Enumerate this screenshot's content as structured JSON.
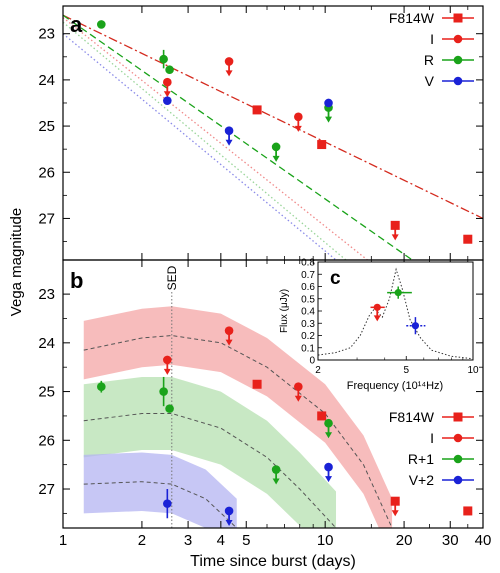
{
  "figure": {
    "ylabel": "Vega magnitude",
    "xlabel": "Time since burst (days)",
    "x_ticks": [
      {
        "value": 1,
        "label": "1"
      },
      {
        "value": 2,
        "label": "2"
      },
      {
        "value": 3,
        "label": "3"
      },
      {
        "value": 4,
        "label": "4"
      },
      {
        "value": 5,
        "label": "5"
      },
      {
        "value": 10,
        "label": "10"
      },
      {
        "value": 20,
        "label": "20"
      },
      {
        "value": 30,
        "label": "30"
      },
      {
        "value": 40,
        "label": "40"
      }
    ]
  },
  "chart_data": [
    {
      "panel_label": "a",
      "type": "scatter",
      "x_scale": "log",
      "xlim": [
        1,
        40
      ],
      "ylim": [
        27.9,
        22.4
      ],
      "y_axis": "inverted",
      "y_ticks": [
        23,
        24,
        25,
        26,
        27
      ],
      "legend": {
        "placement": "top-right",
        "entries": [
          "F814W",
          "I",
          "R",
          "V"
        ]
      },
      "series": [
        {
          "name": "F814W",
          "color": "#e8211b",
          "marker": "square",
          "points": [
            {
              "x": 5.5,
              "y": 24.65
            },
            {
              "x": 9.7,
              "y": 25.4
            },
            {
              "x": 18.5,
              "y": 27.15,
              "upper_limit": true
            },
            {
              "x": 35,
              "y": 27.45
            }
          ]
        },
        {
          "name": "I",
          "color": "#e8211b",
          "marker": "circle",
          "points": [
            {
              "x": 2.5,
              "y": 24.05,
              "upper_limit": true
            },
            {
              "x": 4.3,
              "y": 23.6,
              "upper_limit": true
            },
            {
              "x": 7.9,
              "y": 24.8,
              "upper_limit": true
            }
          ]
        },
        {
          "name": "R",
          "color": "#1aa31a",
          "marker": "circle",
          "points": [
            {
              "x": 1.4,
              "y": 22.8
            },
            {
              "x": 2.42,
              "y": 23.55,
              "yerr": 0.2
            },
            {
              "x": 2.55,
              "y": 23.78
            },
            {
              "x": 6.5,
              "y": 25.45,
              "upper_limit": true
            },
            {
              "x": 10.3,
              "y": 24.6,
              "upper_limit": true
            }
          ]
        },
        {
          "name": "V",
          "color": "#1a22d6",
          "marker": "circle",
          "points": [
            {
              "x": 2.5,
              "y": 24.45
            },
            {
              "x": 4.3,
              "y": 25.1,
              "upper_limit": true
            },
            {
              "x": 10.3,
              "y": 24.5
            }
          ]
        }
      ],
      "fits": [
        {
          "color": "#d42a1e",
          "style": "dash-dot",
          "from": [
            1,
            22.6
          ],
          "to": [
            40,
            27.0
          ]
        },
        {
          "color": "#1aa31a",
          "style": "dashed",
          "from": [
            1,
            22.6
          ],
          "to": [
            21.5,
            27.9
          ]
        },
        {
          "color": "#f08a8a",
          "style": "dotted",
          "from": [
            1,
            22.65
          ],
          "to": [
            14.5,
            27.9
          ]
        },
        {
          "color": "#9ad59a",
          "style": "dotted",
          "from": [
            1,
            22.75
          ],
          "to": [
            12,
            27.9
          ]
        },
        {
          "color": "#8a8ae8",
          "style": "dotted",
          "from": [
            1,
            23.0
          ],
          "to": [
            11,
            27.9
          ]
        }
      ]
    },
    {
      "panel_label": "b",
      "type": "scatter",
      "x_scale": "log",
      "xlim": [
        1,
        40
      ],
      "ylim": [
        27.8,
        22.3
      ],
      "y_axis": "inverted",
      "y_ticks": [
        23,
        24,
        25,
        26,
        27
      ],
      "vline": {
        "x": 2.6,
        "label": "SED"
      },
      "legend": {
        "placement": "bottom-right",
        "entries": [
          "F814W",
          "I",
          "R+1",
          "V+2"
        ]
      },
      "bands": [
        {
          "name": "I",
          "color": "#f4a6a6",
          "center": [
            [
              1.2,
              24.15
            ],
            [
              2.0,
              23.9
            ],
            [
              2.6,
              23.85
            ],
            [
              4,
              24.0
            ],
            [
              6,
              24.5
            ],
            [
              10,
              25.45
            ],
            [
              14,
              26.5
            ],
            [
              18,
              27.8
            ]
          ],
          "half_width": 0.6
        },
        {
          "name": "R+1",
          "color": "#b6e0b0",
          "center": [
            [
              1.2,
              25.6
            ],
            [
              2.0,
              25.45
            ],
            [
              2.6,
              25.45
            ],
            [
              4,
              25.75
            ],
            [
              6,
              26.35
            ],
            [
              8,
              27.0
            ],
            [
              11,
              27.8
            ]
          ],
          "half_width": 0.75
        },
        {
          "name": "V+2",
          "color": "#b4b4f2",
          "center": [
            [
              1.2,
              26.9
            ],
            [
              2.0,
              26.85
            ],
            [
              2.6,
              26.9
            ],
            [
              3.5,
              27.2
            ],
            [
              4.6,
              27.8
            ]
          ],
          "half_width": 0.6
        }
      ],
      "series": [
        {
          "name": "F814W",
          "color": "#e8211b",
          "marker": "square",
          "points": [
            {
              "x": 5.5,
              "y": 24.85
            },
            {
              "x": 9.7,
              "y": 25.5
            },
            {
              "x": 18.5,
              "y": 27.25,
              "upper_limit": true
            },
            {
              "x": 35,
              "y": 27.45
            }
          ]
        },
        {
          "name": "I",
          "color": "#e8211b",
          "marker": "circle",
          "points": [
            {
              "x": 2.5,
              "y": 24.35,
              "upper_limit": true
            },
            {
              "x": 4.3,
              "y": 23.75,
              "upper_limit": true
            },
            {
              "x": 7.9,
              "y": 24.9,
              "upper_limit": true
            }
          ]
        },
        {
          "name": "R+1",
          "color": "#1aa31a",
          "marker": "circle",
          "points": [
            {
              "x": 1.4,
              "y": 24.9,
              "yerr": 0.12
            },
            {
              "x": 2.42,
              "y": 25.0,
              "yerr": 0.3
            },
            {
              "x": 2.55,
              "y": 25.35
            },
            {
              "x": 6.5,
              "y": 26.6,
              "upper_limit": true
            },
            {
              "x": 10.3,
              "y": 25.65,
              "upper_limit": true
            }
          ]
        },
        {
          "name": "V+2",
          "color": "#1a22d6",
          "marker": "circle",
          "points": [
            {
              "x": 2.5,
              "y": 27.3,
              "yerr": 0.3
            },
            {
              "x": 4.3,
              "y": 27.45,
              "upper_limit": true
            },
            {
              "x": 10.3,
              "y": 26.55,
              "upper_limit": true
            }
          ]
        }
      ]
    },
    {
      "panel_label": "c",
      "type": "line",
      "xlabel": "Frequency (10¹⁴Hz)",
      "ylabel": "Flux (μJy)",
      "x_scale": "log",
      "xlim": [
        2,
        10
      ],
      "ylim": [
        0,
        0.8
      ],
      "x_ticks": [
        2,
        5,
        10
      ],
      "y_ticks": [
        0,
        0.1,
        0.2,
        0.3,
        0.4,
        0.5,
        0.6,
        0.7,
        0.8
      ],
      "curve": [
        [
          2.0,
          0.04
        ],
        [
          2.4,
          0.06
        ],
        [
          2.8,
          0.1
        ],
        [
          3.1,
          0.2
        ],
        [
          3.4,
          0.36
        ],
        [
          3.6,
          0.42
        ],
        [
          3.9,
          0.35
        ],
        [
          4.2,
          0.5
        ],
        [
          4.5,
          0.74
        ],
        [
          4.8,
          0.58
        ],
        [
          5.2,
          0.33
        ],
        [
          5.8,
          0.18
        ],
        [
          6.5,
          0.08
        ],
        [
          8.0,
          0.03
        ],
        [
          10.0,
          0.01
        ]
      ],
      "points": [
        {
          "name": "I",
          "color": "#e8211b",
          "x": 3.7,
          "y": 0.43,
          "xerr": [
            3.45,
            4.0
          ],
          "upper_limit": true
        },
        {
          "name": "R",
          "color": "#1aa31a",
          "x": 4.6,
          "y": 0.55,
          "xerr": [
            4.1,
            5.3
          ],
          "yerr": 0.05
        },
        {
          "name": "V",
          "color": "#1a22d6",
          "x": 5.5,
          "y": 0.28,
          "xerr": [
            5.0,
            6.1
          ],
          "yerr": 0.07
        }
      ]
    }
  ]
}
